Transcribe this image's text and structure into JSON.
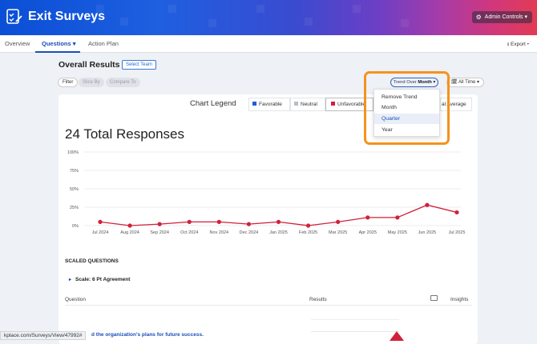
{
  "header": {
    "app_title": "Exit Surveys",
    "admin_controls": "Admin Controls",
    "admin_caret": "▾",
    "gear_glyph": "⚙"
  },
  "nav": {
    "tabs": [
      {
        "label": "Overview"
      },
      {
        "label": "Questions ▾"
      },
      {
        "label": "Action Plan"
      }
    ],
    "export": "⭳ Export ▾"
  },
  "toolbar": {
    "title": "Overall Results",
    "select_team": "Select Team",
    "filter": "Filter",
    "slice_by": "Slice By",
    "compare_to": "Compare To",
    "trend_prefix": "Trend Over ",
    "trend_value": "Month",
    "trend_caret": " ▾",
    "all_time": "🗓 All Time ▾"
  },
  "dropdown": {
    "options": [
      "Remove Trend",
      "Month",
      "Quarter",
      "Year"
    ],
    "hovered": "Quarter"
  },
  "legend": {
    "title": "Chart Legend",
    "items": [
      {
        "label": "Favorable",
        "color": "#1f5fd6"
      },
      {
        "label": "Neutral",
        "color": "#b9bec6"
      },
      {
        "label": "Unfavorable",
        "color": "#d0213a"
      }
    ],
    "extra": "al Average"
  },
  "main": {
    "total_responses": "24 Total Responses",
    "scaled_questions": "SCALED QUESTIONS",
    "scale_caret": "▸",
    "scale_label": "Scale: 6 Pt Agreement",
    "columns": {
      "question": "Question",
      "results": "Results",
      "insights": "Insights"
    },
    "question_text": "d the organization's plans for future success.",
    "status_url": "kplace.com/Surveys/View/47992#"
  },
  "chart_data": {
    "type": "line",
    "categories": [
      "Jul 2024",
      "Aug 2024",
      "Sep 2024",
      "Oct 2024",
      "Nov 2024",
      "Dec 2024",
      "Jan 2025",
      "Feb 2025",
      "Mar 2025",
      "Apr 2025",
      "May 2025",
      "Jun 2025",
      "Jul 2025"
    ],
    "series": [
      {
        "color": "#d0213a",
        "values": [
          5,
          0,
          2,
          5,
          5,
          2,
          5,
          0,
          5,
          11,
          11,
          28,
          18
        ]
      }
    ],
    "ylim": [
      0,
      100
    ],
    "yticks": [
      "100%",
      "75%",
      "50%",
      "25%",
      "0%"
    ],
    "grid": true
  }
}
